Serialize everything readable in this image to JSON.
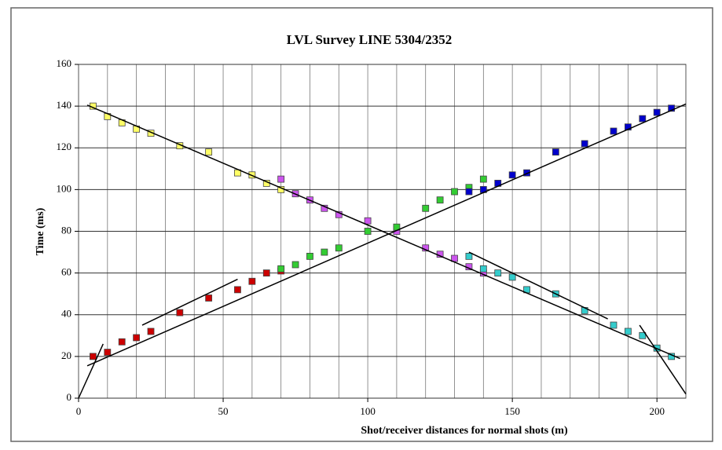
{
  "chart_data": {
    "type": "scatter",
    "title": "LVL Survey LINE 5304/2352",
    "x_label": "Shot/receiver distances for  normal shots (m)",
    "y_label": "Time (ms)",
    "xlim": [
      0,
      210
    ],
    "ylim": [
      0,
      160
    ],
    "xticks": [
      0,
      50,
      100,
      150,
      200
    ],
    "yticks": [
      0,
      20,
      40,
      60,
      80,
      100,
      120,
      140,
      160
    ],
    "x_grid": [
      10,
      20,
      30,
      40,
      50,
      60,
      70,
      80,
      90,
      100,
      110,
      120,
      130,
      140,
      150,
      160,
      170,
      180,
      190,
      200
    ],
    "grid": true,
    "series": [
      {
        "color": "#ffff66",
        "x": [
          5,
          10,
          15,
          20,
          25,
          35,
          45,
          55,
          60,
          65,
          70
        ],
        "values": [
          140,
          135,
          132,
          129,
          127,
          121,
          118,
          108,
          107,
          103,
          100
        ]
      },
      {
        "color": "#cc55ee",
        "x": [
          70,
          75,
          80,
          85,
          90,
          100,
          110,
          120,
          125,
          130,
          135,
          140
        ],
        "values": [
          105,
          98,
          95,
          91,
          88,
          85,
          80,
          72,
          69,
          67,
          63,
          60
        ]
      },
      {
        "color": "#33cccc",
        "x": [
          135,
          140,
          145,
          150,
          155,
          165,
          175,
          185,
          190,
          195,
          200,
          205
        ],
        "values": [
          68,
          62,
          60,
          58,
          52,
          50,
          42,
          35,
          32,
          30,
          24,
          20
        ]
      },
      {
        "color": "#cc0000",
        "x": [
          5,
          10,
          15,
          20,
          25,
          35,
          45,
          55,
          60,
          65,
          70
        ],
        "values": [
          20,
          22,
          27,
          29,
          32,
          41,
          48,
          52,
          56,
          60,
          61
        ]
      },
      {
        "color": "#33cc33",
        "x": [
          70,
          75,
          80,
          85,
          90,
          100,
          110,
          120,
          125,
          130,
          135,
          140
        ],
        "values": [
          62,
          64,
          68,
          70,
          72,
          80,
          82,
          91,
          95,
          99,
          101,
          105
        ]
      },
      {
        "color": "#0000cc",
        "x": [
          135,
          140,
          145,
          150,
          155,
          165,
          175,
          185,
          190,
          195,
          200,
          205
        ],
        "values": [
          99,
          100,
          103,
          107,
          108,
          118,
          122,
          128,
          130,
          134,
          137,
          139
        ]
      }
    ],
    "lines": [
      {
        "color": "#000000",
        "x": [
          3,
          208
        ],
        "values": [
          140.5,
          19
        ]
      },
      {
        "color": "#000000",
        "x": [
          3,
          210
        ],
        "values": [
          15.5,
          141
        ]
      },
      {
        "color": "#000000",
        "x": [
          0,
          8.5
        ],
        "values": [
          0,
          26
        ]
      },
      {
        "color": "#000000",
        "x": [
          22,
          55
        ],
        "values": [
          35,
          57
        ]
      },
      {
        "color": "#000000",
        "x": [
          135,
          183
        ],
        "values": [
          70,
          38
        ]
      },
      {
        "color": "#000000",
        "x": [
          194,
          210
        ],
        "values": [
          35,
          2
        ]
      }
    ]
  }
}
